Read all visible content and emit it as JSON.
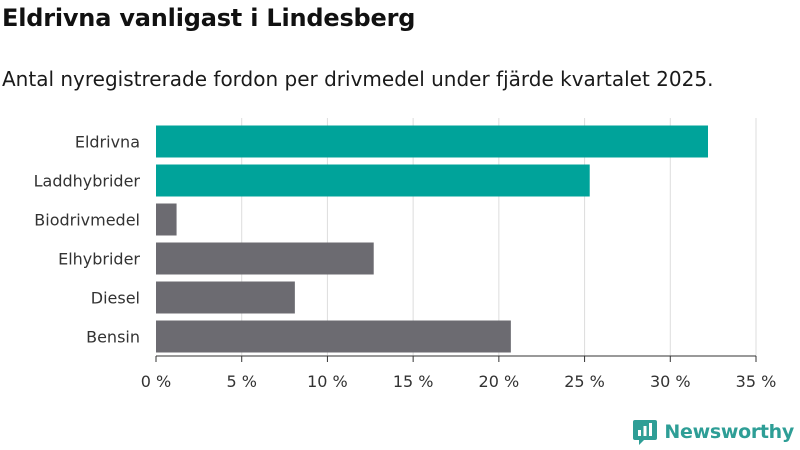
{
  "title": "Eldrivna vanligast i Lindesberg",
  "subtitle": "Antal nyregistrerade fordon per drivmedel under fjärde kvartalet 2025.",
  "brand": "Newsworthy",
  "colors": {
    "highlight": "#00a39a",
    "default": "#6c6b71",
    "grid": "#dddddd",
    "axis": "#333333",
    "brand": "#2e9e96"
  },
  "chart_data": {
    "type": "bar",
    "orientation": "horizontal",
    "categories": [
      "Eldrivna",
      "Laddhybrider",
      "Biodrivmedel",
      "Elhybrider",
      "Diesel",
      "Bensin"
    ],
    "values": [
      32.2,
      25.3,
      1.2,
      12.7,
      8.1,
      20.7
    ],
    "highlighted": [
      true,
      true,
      false,
      false,
      false,
      false
    ],
    "xlim": [
      0,
      35
    ],
    "xticks": [
      0,
      5,
      10,
      15,
      20,
      25,
      30,
      35
    ],
    "xtick_labels": [
      "0 %",
      "5 %",
      "10 %",
      "15 %",
      "20 %",
      "25 %",
      "30 %",
      "35 %"
    ],
    "grid": true
  }
}
